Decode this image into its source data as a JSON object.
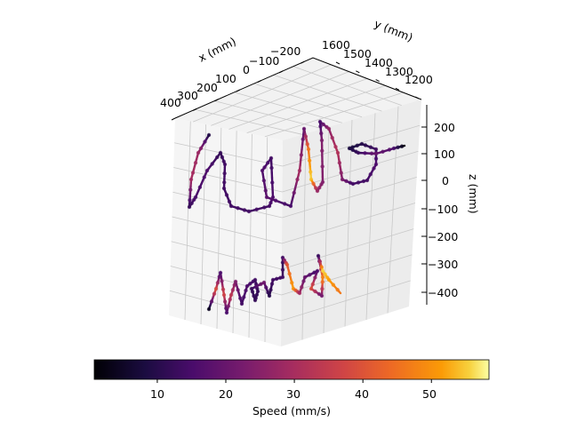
{
  "chart_data": {
    "type": "scatter-3d",
    "title": "",
    "xlabel": "x (mm)",
    "ylabel": "y (mm)",
    "zlabel": "z (mm)",
    "x_ticks": [
      "400",
      "300",
      "200",
      "100",
      "0",
      "−100",
      "−200"
    ],
    "y_ticks": [
      "1600",
      "1500",
      "1400",
      "1300",
      "1200"
    ],
    "z_ticks": [
      "200",
      "100",
      "0",
      "−100",
      "−200",
      "−300",
      "−400"
    ],
    "grid": true,
    "colormap": "inferno",
    "color_variable": "speed",
    "colorbar": {
      "label": "Speed (mm/s)",
      "range": [
        0.8,
        58.4
      ],
      "ticks": [
        "10",
        "20",
        "30",
        "40",
        "50"
      ],
      "tick_values": [
        10,
        20,
        30,
        40,
        50
      ],
      "placement": "bottom"
    },
    "series_description_visible": "handwritten trajectory strokes colored by speed"
  }
}
